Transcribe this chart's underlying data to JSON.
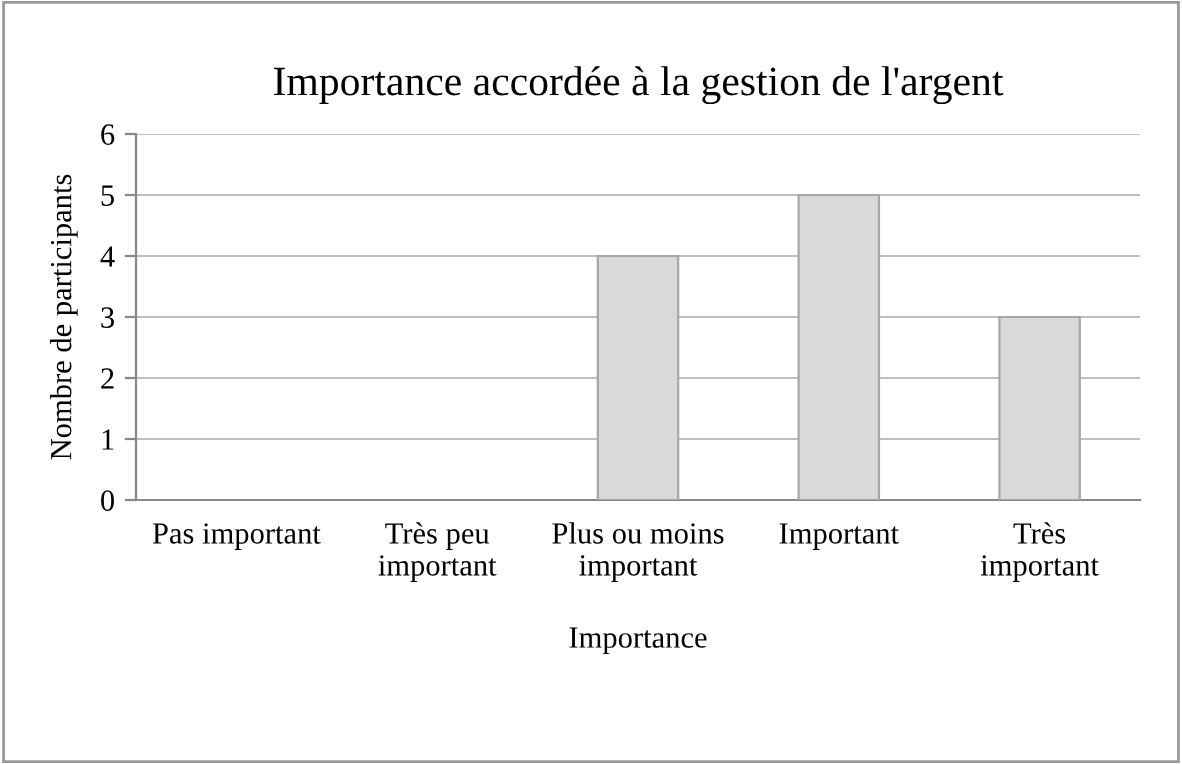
{
  "chart_data": {
    "type": "bar",
    "title": "Importance accordée à la gestion de l'argent",
    "xlabel": "Importance",
    "ylabel": "Nombre de participants",
    "categories": [
      "Pas important",
      "Très peu\nimportant",
      "Plus ou moins\nimportant",
      "Important",
      "Très\nimportant"
    ],
    "values": [
      0,
      0,
      4,
      5,
      3
    ],
    "color": "#d9d9d9",
    "ylim": [
      0,
      6
    ],
    "yticks": [
      0,
      1,
      2,
      3,
      4,
      5,
      6
    ],
    "grid": "y",
    "legend": false
  }
}
